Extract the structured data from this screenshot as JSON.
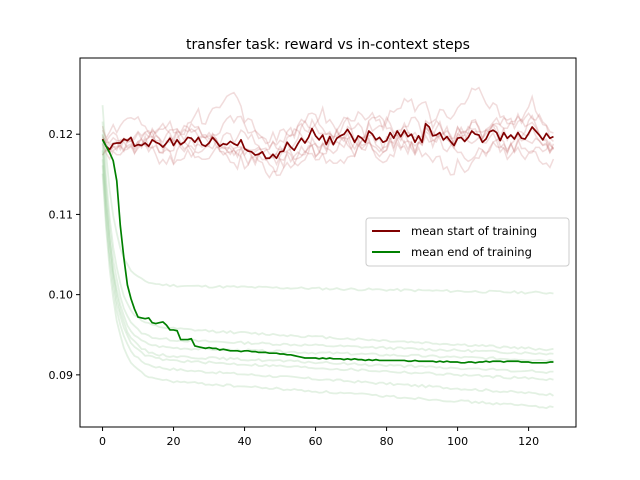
{
  "chart_data": {
    "type": "line",
    "title": "transfer task: reward vs in-context steps",
    "xlabel": "",
    "ylabel": "",
    "xlim": [
      -6.35,
      133.35
    ],
    "ylim": [
      0.0835,
      0.1295
    ],
    "xticks": [
      0,
      20,
      40,
      60,
      80,
      100,
      120
    ],
    "yticks": [
      0.09,
      0.1,
      0.11,
      0.12
    ],
    "ytick_labels": [
      "0.09",
      "0.10",
      "0.11",
      "0.12"
    ],
    "legend": {
      "placement": "center-right",
      "entries": [
        "mean start of training",
        "mean end of training"
      ]
    },
    "x": [
      0,
      1,
      2,
      3,
      4,
      5,
      6,
      7,
      8,
      9,
      10,
      11,
      12,
      13,
      14,
      15,
      16,
      17,
      18,
      19,
      20,
      21,
      22,
      23,
      24,
      25,
      26,
      27,
      28,
      29,
      30,
      31,
      32,
      33,
      34,
      35,
      36,
      37,
      38,
      39,
      40,
      41,
      42,
      43,
      44,
      45,
      46,
      47,
      48,
      49,
      50,
      51,
      52,
      53,
      54,
      55,
      56,
      57,
      58,
      59,
      60,
      61,
      62,
      63,
      64,
      65,
      66,
      67,
      68,
      69,
      70,
      71,
      72,
      73,
      74,
      75,
      76,
      77,
      78,
      79,
      80,
      81,
      82,
      83,
      84,
      85,
      86,
      87,
      88,
      89,
      90,
      91,
      92,
      93,
      94,
      95,
      96,
      97,
      98,
      99,
      100,
      101,
      102,
      103,
      104,
      105,
      106,
      107,
      108,
      109,
      110,
      111,
      112,
      113,
      114,
      115,
      116,
      117,
      118,
      119,
      120,
      121,
      122,
      123,
      124,
      125,
      126,
      127
    ],
    "series": [
      {
        "name": "mean start of training",
        "color": "#800000",
        "values": [
          0.1194,
          0.1185,
          0.1181,
          0.1188,
          0.1189,
          0.1189,
          0.1194,
          0.1192,
          0.1196,
          0.1185,
          0.1187,
          0.1186,
          0.1189,
          0.1185,
          0.1193,
          0.119,
          0.1188,
          0.1184,
          0.1189,
          0.1195,
          0.1186,
          0.1193,
          0.1187,
          0.119,
          0.1196,
          0.1195,
          0.119,
          0.1196,
          0.1187,
          0.1185,
          0.1189,
          0.1196,
          0.1191,
          0.1185,
          0.1188,
          0.1187,
          0.1191,
          0.1188,
          0.1186,
          0.1193,
          0.1182,
          0.1179,
          0.1178,
          0.1174,
          0.1175,
          0.1178,
          0.117,
          0.117,
          0.1175,
          0.117,
          0.1178,
          0.1179,
          0.119,
          0.1184,
          0.118,
          0.1188,
          0.1195,
          0.1189,
          0.1196,
          0.1207,
          0.1198,
          0.1193,
          0.1199,
          0.1187,
          0.1197,
          0.1187,
          0.1195,
          0.1198,
          0.12,
          0.1206,
          0.1199,
          0.119,
          0.1198,
          0.1195,
          0.119,
          0.1204,
          0.12,
          0.1193,
          0.1196,
          0.119,
          0.1192,
          0.1202,
          0.1195,
          0.1204,
          0.1197,
          0.1205,
          0.1197,
          0.12,
          0.119,
          0.1198,
          0.119,
          0.1213,
          0.1209,
          0.1198,
          0.1199,
          0.1202,
          0.1193,
          0.1197,
          0.1191,
          0.1186,
          0.1195,
          0.1196,
          0.1191,
          0.1196,
          0.1204,
          0.12,
          0.1199,
          0.119,
          0.1194,
          0.1203,
          0.1205,
          0.1202,
          0.1192,
          0.1202,
          0.1195,
          0.1199,
          0.1194,
          0.1202,
          0.1195,
          0.1194,
          0.1201,
          0.1209,
          0.1204,
          0.1199,
          0.1193,
          0.1201,
          0.1195,
          0.1197
        ]
      },
      {
        "name": "mean end of training",
        "color": "#008000",
        "values": [
          0.1193,
          0.1185,
          0.1177,
          0.1167,
          0.1142,
          0.1086,
          0.1046,
          0.1012,
          0.0995,
          0.0982,
          0.0972,
          0.0971,
          0.097,
          0.0971,
          0.0965,
          0.0964,
          0.0965,
          0.0966,
          0.0962,
          0.0956,
          0.0956,
          0.0955,
          0.0944,
          0.0944,
          0.0944,
          0.0945,
          0.0936,
          0.0935,
          0.0934,
          0.0933,
          0.0934,
          0.0933,
          0.0933,
          0.0931,
          0.0932,
          0.0931,
          0.093,
          0.093,
          0.093,
          0.0929,
          0.093,
          0.093,
          0.0929,
          0.0929,
          0.0928,
          0.0928,
          0.0928,
          0.0927,
          0.0927,
          0.0927,
          0.0926,
          0.0926,
          0.0925,
          0.0925,
          0.0924,
          0.0923,
          0.0922,
          0.0921,
          0.0921,
          0.0921,
          0.0921,
          0.092,
          0.0921,
          0.092,
          0.0921,
          0.092,
          0.092,
          0.092,
          0.0919,
          0.092,
          0.0919,
          0.092,
          0.0919,
          0.0919,
          0.0918,
          0.0919,
          0.0918,
          0.0919,
          0.0918,
          0.0918,
          0.0918,
          0.0918,
          0.0918,
          0.0918,
          0.0918,
          0.0918,
          0.0917,
          0.0917,
          0.0918,
          0.0917,
          0.0917,
          0.0917,
          0.0917,
          0.0917,
          0.0916,
          0.0917,
          0.0916,
          0.0917,
          0.0916,
          0.0916,
          0.0916,
          0.0915,
          0.0915,
          0.0916,
          0.0916,
          0.0915,
          0.0916,
          0.0916,
          0.0917,
          0.0916,
          0.0917,
          0.0917,
          0.0917,
          0.0916,
          0.0917,
          0.0917,
          0.0917,
          0.0917,
          0.0916,
          0.0916,
          0.0916,
          0.0915,
          0.0915,
          0.0915,
          0.0915,
          0.0915,
          0.0916,
          0.0916
        ]
      }
    ],
    "background_start_runs": {
      "color": "#c06060",
      "opacity": 0.22,
      "runs": [
        {
          "seed": 1,
          "start": 0.1205,
          "amp": 0.0025
        },
        {
          "seed": 2,
          "start": 0.119,
          "amp": 0.002
        },
        {
          "seed": 3,
          "start": 0.118,
          "amp": 0.0028
        },
        {
          "seed": 4,
          "start": 0.12,
          "amp": 0.0022
        },
        {
          "seed": 5,
          "start": 0.1185,
          "amp": 0.003
        },
        {
          "seed": 6,
          "start": 0.1195,
          "amp": 0.0018
        },
        {
          "seed": 7,
          "start": 0.121,
          "amp": 0.0024
        },
        {
          "seed": 8,
          "start": 0.1175,
          "amp": 0.0026
        }
      ]
    },
    "background_end_runs": {
      "color": "#7fc07f",
      "opacity": 0.22,
      "runs": [
        {
          "start": 0.1235,
          "plateau": 0.1012,
          "end": 0.1002
        },
        {
          "start": 0.1215,
          "plateau": 0.096,
          "end": 0.0931
        },
        {
          "start": 0.12,
          "plateau": 0.0945,
          "end": 0.0926
        },
        {
          "start": 0.118,
          "plateau": 0.0935,
          "end": 0.0918
        },
        {
          "start": 0.119,
          "plateau": 0.0925,
          "end": 0.0903
        },
        {
          "start": 0.117,
          "plateau": 0.092,
          "end": 0.0894
        },
        {
          "start": 0.116,
          "plateau": 0.091,
          "end": 0.0875
        },
        {
          "start": 0.115,
          "plateau": 0.0895,
          "end": 0.0859
        }
      ]
    }
  }
}
